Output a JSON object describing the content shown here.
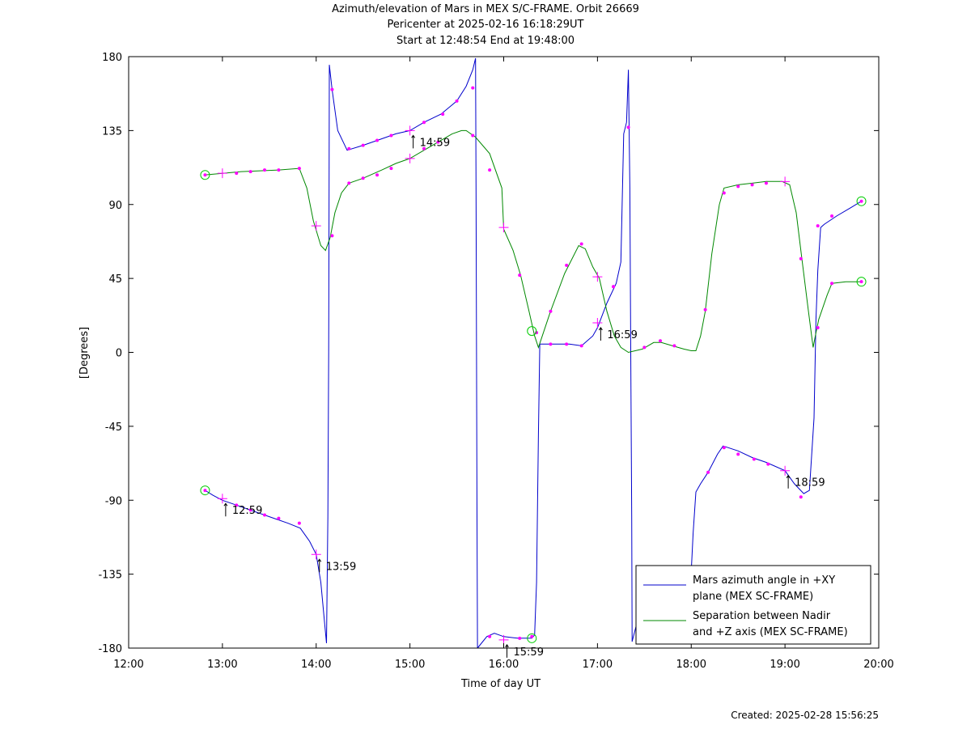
{
  "header": {
    "title": "Azimuth/elevation of Mars in MEX S/C-FRAME.  Orbit 26669",
    "pericenter": "Pericenter at 2025-02-16 16:18:29UT",
    "start_end": "Start at 12:48:54 End at 19:48:00"
  },
  "footer": {
    "created": "Created: 2025-02-28 15:56:25"
  },
  "chart_data": {
    "type": "line",
    "xlabel": "Time of day UT",
    "ylabel": "[Degrees]",
    "xlim": [
      12.0,
      20.0
    ],
    "ylim": [
      -180,
      180
    ],
    "x_ticks": [
      12,
      13,
      14,
      15,
      16,
      17,
      18,
      19,
      20
    ],
    "x_tick_labels": [
      "12:00",
      "13:00",
      "14:00",
      "15:00",
      "16:00",
      "17:00",
      "18:00",
      "19:00",
      "20:00"
    ],
    "y_ticks": [
      180,
      135,
      90,
      45,
      0,
      -45,
      -90,
      -135,
      -180
    ],
    "y_tick_labels": [
      "180",
      "135",
      "90",
      "45",
      "0",
      "-45",
      "-90",
      "-135",
      "-180"
    ],
    "grid": false,
    "legend_position": "bottom-right",
    "series": [
      {
        "name": "Mars azimuth angle in +XY plane (MEX SC-FRAME)",
        "legend_lines": [
          "Mars azimuth angle in +XY",
          "plane (MEX SC-FRAME)"
        ],
        "color": "#0000cc",
        "segments": [
          [
            [
              12.815,
              -84
            ],
            [
              12.9,
              -87
            ],
            [
              13.0,
              -90
            ],
            [
              13.15,
              -93
            ],
            [
              13.35,
              -97
            ],
            [
              13.55,
              -101
            ],
            [
              13.7,
              -104
            ],
            [
              13.83,
              -107
            ],
            [
              13.93,
              -115
            ],
            [
              14.0,
              -123
            ],
            [
              14.05,
              -140
            ],
            [
              14.09,
              -165
            ],
            [
              14.11,
              -177
            ],
            [
              14.125,
              -100
            ],
            [
              14.133,
              0
            ],
            [
              14.138,
              100
            ],
            [
              14.14,
              175
            ]
          ],
          [
            [
              14.14,
              175
            ],
            [
              14.17,
              160
            ],
            [
              14.23,
              135
            ],
            [
              14.33,
              123
            ],
            [
              14.5,
              126
            ],
            [
              14.7,
              130
            ],
            [
              14.85,
              133
            ],
            [
              15.0,
              135
            ],
            [
              15.15,
              140
            ],
            [
              15.33,
              145
            ],
            [
              15.5,
              153
            ],
            [
              15.6,
              162
            ],
            [
              15.67,
              172
            ],
            [
              15.7,
              179
            ],
            [
              15.705,
              100
            ],
            [
              15.71,
              0
            ],
            [
              15.715,
              -100
            ],
            [
              15.72,
              -180
            ]
          ],
          [
            [
              15.72,
              -180
            ],
            [
              15.82,
              -173
            ],
            [
              15.9,
              -171
            ],
            [
              16.0,
              -173
            ],
            [
              16.15,
              -174
            ],
            [
              16.3,
              -174
            ],
            [
              16.33,
              -172
            ],
            [
              16.35,
              -140
            ],
            [
              16.37,
              -50
            ],
            [
              16.385,
              5
            ]
          ],
          [
            [
              16.385,
              5
            ],
            [
              16.5,
              5
            ],
            [
              16.7,
              5
            ],
            [
              16.83,
              4
            ],
            [
              16.95,
              10
            ],
            [
              17.0,
              15
            ],
            [
              17.1,
              30
            ],
            [
              17.2,
              42
            ],
            [
              17.25,
              55
            ],
            [
              17.28,
              133
            ],
            [
              17.31,
              140
            ],
            [
              17.33,
              172
            ],
            [
              17.345,
              100
            ],
            [
              17.355,
              0
            ],
            [
              17.365,
              -100
            ],
            [
              17.37,
              -176
            ]
          ],
          [
            [
              17.37,
              -176
            ],
            [
              17.42,
              -165
            ]
          ],
          [
            [
              18.0,
              -133
            ],
            [
              18.02,
              -110
            ],
            [
              18.05,
              -85
            ],
            [
              18.1,
              -80
            ],
            [
              18.18,
              -73
            ],
            [
              18.28,
              -62
            ],
            [
              18.34,
              -57
            ],
            [
              18.5,
              -60
            ],
            [
              18.65,
              -64
            ],
            [
              18.8,
              -67
            ],
            [
              19.0,
              -72
            ],
            [
              19.1,
              -80
            ],
            [
              19.2,
              -86
            ],
            [
              19.26,
              -84
            ],
            [
              19.31,
              -40
            ],
            [
              19.33,
              20
            ],
            [
              19.35,
              50
            ],
            [
              19.38,
              76
            ],
            [
              19.42,
              78
            ],
            [
              19.55,
              83
            ],
            [
              19.7,
              88
            ],
            [
              19.815,
              92
            ]
          ]
        ]
      },
      {
        "name": "Separation between Nadir and +Z axis (MEX SC-FRAME)",
        "legend_lines": [
          "Separation between Nadir",
          "and +Z axis (MEX SC-FRAME)"
        ],
        "color": "#008800",
        "segments": [
          [
            [
              12.815,
              108
            ],
            [
              13.0,
              109
            ],
            [
              13.2,
              110
            ],
            [
              13.4,
              110.5
            ],
            [
              13.6,
              111
            ],
            [
              13.82,
              112
            ],
            [
              13.9,
              100
            ],
            [
              13.97,
              80
            ],
            [
              14.05,
              65
            ],
            [
              14.1,
              62
            ],
            [
              14.15,
              70
            ],
            [
              14.2,
              85
            ],
            [
              14.27,
              97
            ],
            [
              14.35,
              103
            ],
            [
              14.5,
              106
            ],
            [
              14.7,
              111
            ],
            [
              14.85,
              115
            ],
            [
              15.0,
              118
            ],
            [
              15.15,
              123
            ],
            [
              15.3,
              128
            ],
            [
              15.45,
              133
            ],
            [
              15.55,
              135
            ],
            [
              15.6,
              135
            ],
            [
              15.7,
              131
            ],
            [
              15.85,
              121
            ],
            [
              15.98,
              100
            ],
            [
              16.0,
              75
            ],
            [
              16.1,
              62
            ],
            [
              16.18,
              47
            ],
            [
              16.27,
              25
            ],
            [
              16.33,
              10
            ],
            [
              16.37,
              3
            ],
            [
              16.4,
              8
            ],
            [
              16.5,
              25
            ],
            [
              16.65,
              48
            ],
            [
              16.8,
              65
            ],
            [
              16.87,
              63
            ],
            [
              16.95,
              52
            ],
            [
              17.02,
              45
            ],
            [
              17.1,
              25
            ],
            [
              17.18,
              10
            ],
            [
              17.25,
              3
            ],
            [
              17.33,
              0
            ],
            [
              17.48,
              2
            ],
            [
              17.6,
              6
            ],
            [
              17.68,
              6
            ],
            [
              17.8,
              4
            ],
            [
              17.92,
              2
            ],
            [
              18.0,
              1
            ],
            [
              18.05,
              1
            ],
            [
              18.1,
              10
            ],
            [
              18.15,
              25
            ],
            [
              18.22,
              60
            ],
            [
              18.3,
              90
            ],
            [
              18.35,
              100
            ],
            [
              18.5,
              102
            ],
            [
              18.65,
              103
            ],
            [
              18.8,
              104
            ],
            [
              18.97,
              104
            ],
            [
              19.05,
              102
            ],
            [
              19.12,
              85
            ],
            [
              19.18,
              57
            ],
            [
              19.25,
              25
            ],
            [
              19.3,
              3
            ],
            [
              19.33,
              12
            ],
            [
              19.36,
              20
            ],
            [
              19.45,
              35
            ],
            [
              19.5,
              42
            ],
            [
              19.65,
              43
            ],
            [
              19.815,
              43
            ]
          ]
        ]
      }
    ],
    "point_markers": [
      [
        12.815,
        108
      ],
      [
        13.15,
        109
      ],
      [
        13.3,
        110
      ],
      [
        13.45,
        111
      ],
      [
        13.6,
        111
      ],
      [
        13.82,
        112
      ],
      [
        14.17,
        71
      ],
      [
        14.35,
        103
      ],
      [
        14.5,
        106
      ],
      [
        14.65,
        108
      ],
      [
        14.8,
        112
      ],
      [
        15.15,
        124
      ],
      [
        15.3,
        128
      ],
      [
        15.67,
        132
      ],
      [
        15.85,
        111
      ],
      [
        16.17,
        47
      ],
      [
        16.35,
        12
      ],
      [
        16.5,
        25
      ],
      [
        16.67,
        53
      ],
      [
        16.83,
        66
      ],
      [
        17.17,
        40
      ],
      [
        17.5,
        3
      ],
      [
        17.67,
        7
      ],
      [
        17.82,
        4
      ],
      [
        18.15,
        26
      ],
      [
        18.35,
        97
      ],
      [
        18.5,
        101
      ],
      [
        18.65,
        102
      ],
      [
        18.8,
        103
      ],
      [
        19.17,
        57
      ],
      [
        19.35,
        15
      ],
      [
        19.5,
        42
      ],
      [
        19.815,
        43
      ],
      [
        12.815,
        -84
      ],
      [
        13.15,
        -93
      ],
      [
        13.3,
        -96
      ],
      [
        13.45,
        -99
      ],
      [
        13.6,
        -101
      ],
      [
        13.82,
        -104
      ],
      [
        14.17,
        160
      ],
      [
        14.35,
        124
      ],
      [
        14.5,
        126
      ],
      [
        14.65,
        129
      ],
      [
        14.8,
        132
      ],
      [
        15.15,
        140
      ],
      [
        15.35,
        145
      ],
      [
        15.5,
        153
      ],
      [
        15.67,
        161
      ],
      [
        15.85,
        -173
      ],
      [
        16.17,
        -174
      ],
      [
        16.3,
        -173
      ],
      [
        16.5,
        5
      ],
      [
        16.67,
        5
      ],
      [
        16.83,
        4
      ],
      [
        17.17,
        40
      ],
      [
        17.33,
        137
      ],
      [
        18.18,
        -73
      ],
      [
        18.35,
        -58
      ],
      [
        18.5,
        -62
      ],
      [
        18.67,
        -65
      ],
      [
        18.82,
        -68
      ],
      [
        19.17,
        -88
      ],
      [
        19.35,
        77
      ],
      [
        19.5,
        83
      ],
      [
        19.815,
        92
      ]
    ],
    "hour_markers": [
      [
        13.0,
        109
      ],
      [
        14.0,
        77
      ],
      [
        15.0,
        118
      ],
      [
        16.0,
        76
      ],
      [
        17.0,
        46
      ],
      [
        19.0,
        104
      ],
      [
        13.0,
        -89
      ],
      [
        14.0,
        -123
      ],
      [
        15.0,
        135
      ],
      [
        16.0,
        -175
      ],
      [
        17.0,
        18
      ],
      [
        19.0,
        -72
      ]
    ],
    "circle_markers": [
      [
        12.815,
        108
      ],
      [
        12.815,
        -84
      ],
      [
        16.3,
        13
      ],
      [
        16.3,
        -174
      ],
      [
        19.815,
        92
      ],
      [
        19.815,
        43
      ]
    ],
    "annotations": [
      {
        "x": 13.0,
        "y": -89,
        "label": "12:59"
      },
      {
        "x": 14.0,
        "y": -123,
        "label": "13:59"
      },
      {
        "x": 15.0,
        "y": 135,
        "label": "14:59"
      },
      {
        "x": 16.0,
        "y": -175,
        "label": "15:59"
      },
      {
        "x": 17.0,
        "y": 18,
        "label": "16:59"
      },
      {
        "x": 19.0,
        "y": -72,
        "label": "18:59"
      }
    ]
  }
}
